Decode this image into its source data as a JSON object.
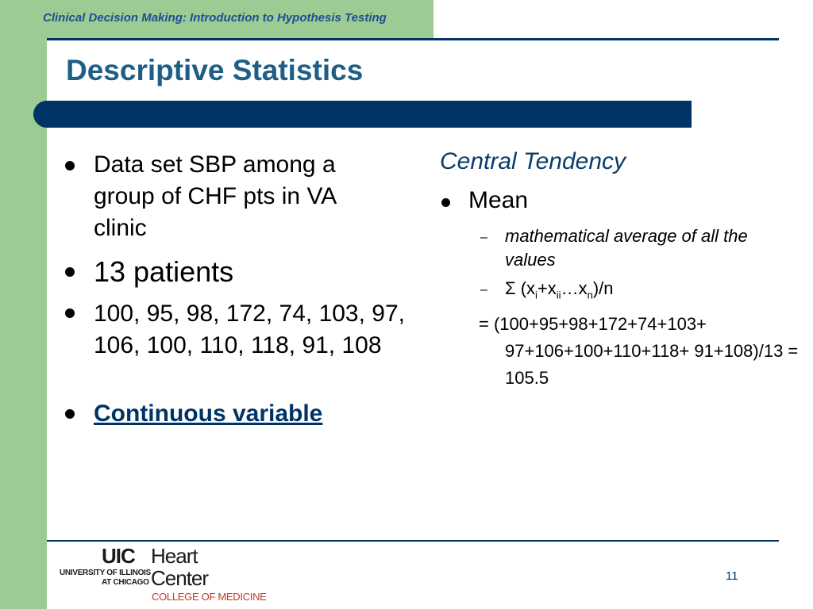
{
  "header": {
    "course_title": "Clinical Decision Making: Introduction to Hypothesis Testing"
  },
  "slide": {
    "title": "Descriptive Statistics",
    "left_bullets": [
      "Data set SBP among a group of CHF pts in VA clinic",
      "13 patients",
      "100, 95, 98, 172, 74, 103, 97, 106, 100, 110, 118, 91, 108",
      "Continuous variable"
    ],
    "right": {
      "heading": "Central Tendency",
      "bullet": "Mean",
      "sub_items": [
        "mathematical average of all the values"
      ],
      "formula": {
        "prefix": "Σ (x",
        "sub1": "i",
        "plus": "+x",
        "sub2": "ii",
        "dots": "…x",
        "sub3": "n",
        "suffix": ")/n"
      },
      "calculation": "= (100+95+98+172+74+103+ 97+106+100+110+118+ 91+108)/13 = 105.5"
    }
  },
  "footer": {
    "logo": {
      "uic": "UIC",
      "heart": "Heart",
      "center": "Center",
      "university_line1": "UNIVERSITY OF ILLINOIS",
      "university_line2": "AT CHICAGO",
      "college": "COLLEGE OF MEDICINE"
    },
    "page_number": "11"
  },
  "colors": {
    "accent_green": "#9ccb94",
    "navy": "#003366",
    "title_blue": "#1f5f86"
  }
}
